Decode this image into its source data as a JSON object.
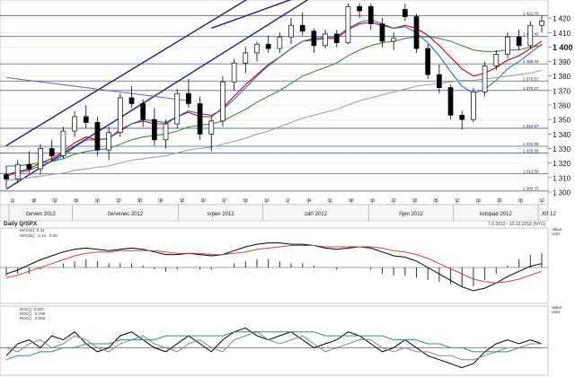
{
  "header": {
    "indicator_title": "Daily Q/SPX",
    "date_range": "7.6.2012 - 10.12.2012 (NYG)",
    "osc_value_label": "Value",
    "osc_unit_label": "USD"
  },
  "price_axis": {
    "ticks": [
      "1 300",
      "1 310",
      "1 320",
      "1 330",
      "1 340",
      "1 350",
      "1 360",
      "1 370",
      "1 380",
      "1 390",
      "1 400",
      "1 410",
      "1 420"
    ],
    "highlight_label": "1 400",
    "level_labels": [
      "1 421.76",
      "1 407.42",
      "1 388.44",
      "1 376.57",
      "1 370.07",
      "1 343.97",
      "1 331.55",
      "1 326.85",
      "1 312.56",
      "1 300.73"
    ]
  },
  "date_axis": {
    "days": [
      "11",
      "18",
      "02",
      "09",
      "16",
      "23",
      "30",
      "06",
      "13",
      "20",
      "27",
      "03",
      "10",
      "17",
      "24",
      "01",
      "08",
      "15",
      "22",
      "29",
      "05",
      "12",
      "19",
      "26",
      "03",
      "10"
    ],
    "months": [
      "červen 2012",
      "červenec 2012",
      "srpen 2012",
      "září 2012",
      "říjen 2012",
      "listopad 2012",
      "XII 12"
    ]
  },
  "macd_legend": [
    "MACD(): 0.34",
    "MACD(): -2.14, -0.08"
  ],
  "roc_legend": [
    "ROC(): 0.603",
    "ROC(): -0.798",
    "ROC(): -0.062"
  ],
  "colors": {
    "candle_up": "#ffffff",
    "candle_down": "#000000",
    "ma_red": "#cc0000",
    "ma_blue": "#1f6fc1",
    "ma_green": "#3a8f3a",
    "ma_gray": "#a0a0a0",
    "channel": "#1a1a8c",
    "level": "#4a5a8a"
  },
  "chart_data": [
    {
      "type": "candlestick",
      "title": "",
      "ylim": [
        1295,
        1430
      ],
      "ohlc": [
        {
          "o": 1312,
          "h": 1318,
          "l": 1303,
          "c": 1309
        },
        {
          "o": 1309,
          "h": 1322,
          "l": 1306,
          "c": 1319
        },
        {
          "o": 1319,
          "h": 1328,
          "l": 1313,
          "c": 1316
        },
        {
          "o": 1316,
          "h": 1333,
          "l": 1312,
          "c": 1330
        },
        {
          "o": 1330,
          "h": 1336,
          "l": 1322,
          "c": 1325
        },
        {
          "o": 1325,
          "h": 1345,
          "l": 1323,
          "c": 1342
        },
        {
          "o": 1342,
          "h": 1356,
          "l": 1338,
          "c": 1352
        },
        {
          "o": 1352,
          "h": 1360,
          "l": 1344,
          "c": 1348
        },
        {
          "o": 1348,
          "h": 1352,
          "l": 1325,
          "c": 1329
        },
        {
          "o": 1329,
          "h": 1345,
          "l": 1322,
          "c": 1341
        },
        {
          "o": 1341,
          "h": 1368,
          "l": 1338,
          "c": 1365
        },
        {
          "o": 1365,
          "h": 1373,
          "l": 1358,
          "c": 1361
        },
        {
          "o": 1361,
          "h": 1364,
          "l": 1345,
          "c": 1350
        },
        {
          "o": 1350,
          "h": 1358,
          "l": 1332,
          "c": 1336
        },
        {
          "o": 1336,
          "h": 1350,
          "l": 1330,
          "c": 1347
        },
        {
          "o": 1347,
          "h": 1371,
          "l": 1344,
          "c": 1368
        },
        {
          "o": 1368,
          "h": 1378,
          "l": 1358,
          "c": 1361
        },
        {
          "o": 1361,
          "h": 1366,
          "l": 1336,
          "c": 1340
        },
        {
          "o": 1340,
          "h": 1352,
          "l": 1328,
          "c": 1349
        },
        {
          "o": 1349,
          "h": 1380,
          "l": 1345,
          "c": 1376
        },
        {
          "o": 1376,
          "h": 1392,
          "l": 1370,
          "c": 1389
        },
        {
          "o": 1389,
          "h": 1400,
          "l": 1382,
          "c": 1396
        },
        {
          "o": 1396,
          "h": 1404,
          "l": 1390,
          "c": 1402
        },
        {
          "o": 1402,
          "h": 1408,
          "l": 1396,
          "c": 1399
        },
        {
          "o": 1399,
          "h": 1410,
          "l": 1396,
          "c": 1407
        },
        {
          "o": 1407,
          "h": 1420,
          "l": 1402,
          "c": 1415
        },
        {
          "o": 1415,
          "h": 1424,
          "l": 1408,
          "c": 1411
        },
        {
          "o": 1411,
          "h": 1413,
          "l": 1396,
          "c": 1401
        },
        {
          "o": 1401,
          "h": 1412,
          "l": 1399,
          "c": 1409
        },
        {
          "o": 1409,
          "h": 1412,
          "l": 1400,
          "c": 1403
        },
        {
          "o": 1403,
          "h": 1430,
          "l": 1402,
          "c": 1428
        },
        {
          "o": 1428,
          "h": 1430,
          "l": 1420,
          "c": 1425
        },
        {
          "o": 1428,
          "h": 1430,
          "l": 1412,
          "c": 1416
        },
        {
          "o": 1416,
          "h": 1420,
          "l": 1400,
          "c": 1404
        },
        {
          "o": 1404,
          "h": 1410,
          "l": 1398,
          "c": 1406
        },
        {
          "o": 1426,
          "h": 1430,
          "l": 1418,
          "c": 1421
        },
        {
          "o": 1421,
          "h": 1423,
          "l": 1396,
          "c": 1399
        },
        {
          "o": 1399,
          "h": 1402,
          "l": 1378,
          "c": 1381
        },
        {
          "o": 1381,
          "h": 1388,
          "l": 1368,
          "c": 1372
        },
        {
          "o": 1372,
          "h": 1374,
          "l": 1350,
          "c": 1353
        },
        {
          "o": 1353,
          "h": 1356,
          "l": 1343,
          "c": 1350
        },
        {
          "o": 1350,
          "h": 1372,
          "l": 1348,
          "c": 1369
        },
        {
          "o": 1369,
          "h": 1390,
          "l": 1366,
          "c": 1387
        },
        {
          "o": 1387,
          "h": 1398,
          "l": 1384,
          "c": 1395
        },
        {
          "o": 1395,
          "h": 1410,
          "l": 1392,
          "c": 1407
        },
        {
          "o": 1407,
          "h": 1412,
          "l": 1398,
          "c": 1401
        },
        {
          "o": 1401,
          "h": 1418,
          "l": 1399,
          "c": 1415
        },
        {
          "o": 1415,
          "h": 1422,
          "l": 1410,
          "c": 1418
        }
      ],
      "overlays": [
        {
          "name": "",
          "color": "ma_red",
          "values": [
            1312,
            1314,
            1316,
            1320,
            1323,
            1328,
            1334,
            1338,
            1336,
            1337,
            1343,
            1347,
            1349,
            1347,
            1347,
            1352,
            1355,
            1352,
            1352,
            1358,
            1366,
            1374,
            1381,
            1388,
            1393,
            1399,
            1404,
            1405,
            1406,
            1406,
            1412,
            1416,
            1417,
            1415,
            1413,
            1415,
            1413,
            1408,
            1401,
            1393,
            1385,
            1380,
            1382,
            1386,
            1391,
            1394,
            1399,
            1404
          ]
        },
        {
          "name": "",
          "color": "ma_blue",
          "values": [
            1311,
            1313,
            1315,
            1318,
            1321,
            1325,
            1331,
            1336,
            1336,
            1337,
            1342,
            1347,
            1350,
            1349,
            1348,
            1352,
            1356,
            1354,
            1353,
            1357,
            1364,
            1372,
            1380,
            1387,
            1393,
            1399,
            1404,
            1406,
            1407,
            1407,
            1413,
            1417,
            1419,
            1416,
            1413,
            1414,
            1410,
            1403,
            1394,
            1383,
            1373,
            1368,
            1371,
            1377,
            1385,
            1390,
            1396,
            1402
          ]
        },
        {
          "name": "",
          "color": "ma_green",
          "values": [
            1318,
            1318,
            1319,
            1320,
            1321,
            1323,
            1326,
            1328,
            1329,
            1330,
            1333,
            1336,
            1338,
            1339,
            1340,
            1342,
            1345,
            1346,
            1347,
            1349,
            1353,
            1357,
            1362,
            1366,
            1370,
            1375,
            1380,
            1383,
            1386,
            1389,
            1394,
            1398,
            1401,
            1403,
            1404,
            1406,
            1407,
            1407,
            1406,
            1404,
            1401,
            1398,
            1397,
            1397,
            1398,
            1398,
            1400,
            1401
          ]
        },
        {
          "name": "",
          "color": "ma_gray",
          "values": [
            1308,
            1309,
            1310,
            1311,
            1312,
            1313,
            1315,
            1316,
            1317,
            1318,
            1320,
            1322,
            1323,
            1324,
            1325,
            1327,
            1329,
            1330,
            1331,
            1333,
            1335,
            1337,
            1340,
            1342,
            1345,
            1348,
            1351,
            1353,
            1355,
            1357,
            1360,
            1363,
            1365,
            1367,
            1369,
            1371,
            1373,
            1374,
            1375,
            1376,
            1377,
            1377,
            1378,
            1379,
            1380,
            1381,
            1382,
            1384
          ]
        }
      ]
    },
    {
      "type": "line",
      "title": "",
      "ylim": [
        -25,
        25
      ],
      "series": [
        {
          "name": "",
          "color": "#000000",
          "values": [
            -5,
            -2,
            2,
            6,
            9,
            12,
            14,
            15,
            14,
            13,
            14,
            15,
            14,
            12,
            10,
            10,
            11,
            10,
            9,
            10,
            13,
            16,
            18,
            19,
            19,
            18,
            18,
            17,
            15,
            14,
            15,
            16,
            15,
            12,
            9,
            8,
            5,
            0,
            -5,
            -10,
            -15,
            -18,
            -16,
            -12,
            -7,
            -3,
            1,
            3
          ]
        },
        {
          "name": "",
          "color": "#cc4444",
          "values": [
            -8,
            -6,
            -3,
            0,
            3,
            6,
            9,
            11,
            12,
            12,
            13,
            13,
            13,
            13,
            12,
            11,
            11,
            11,
            10,
            10,
            11,
            12,
            14,
            15,
            16,
            17,
            17,
            17,
            16,
            16,
            16,
            16,
            16,
            15,
            13,
            12,
            10,
            7,
            3,
            -1,
            -5,
            -9,
            -11,
            -12,
            -11,
            -9,
            -6,
            -3
          ]
        }
      ],
      "bars": [
        -4,
        -3,
        -3,
        -1,
        0,
        2,
        3,
        4,
        3,
        2,
        2,
        2,
        1,
        -1,
        -2,
        -1,
        0,
        -1,
        -1,
        0,
        2,
        3,
        4,
        4,
        3,
        2,
        2,
        1,
        0,
        -1,
        0,
        0,
        -1,
        -3,
        -4,
        -4,
        -5,
        -6,
        -7,
        -8,
        -9,
        -9,
        -6,
        -3,
        1,
        4,
        6,
        7
      ]
    },
    {
      "type": "line",
      "title": "",
      "ylim": [
        -6,
        8
      ],
      "series": [
        {
          "name": "",
          "color": "#000000",
          "values": [
            -2,
            1,
            2,
            0,
            3,
            2,
            4,
            1,
            -1,
            0,
            3,
            4,
            2,
            0,
            -1,
            1,
            3,
            1,
            -1,
            2,
            4,
            5,
            3,
            2,
            3,
            4,
            2,
            0,
            1,
            2,
            4,
            3,
            1,
            -1,
            0,
            2,
            0,
            -2,
            -3,
            -4,
            -5,
            -4,
            -1,
            1,
            2,
            1,
            2,
            1
          ]
        },
        {
          "name": "",
          "color": "#888888",
          "values": [
            0,
            -1,
            1,
            2,
            0,
            1,
            3,
            2,
            0,
            -1,
            1,
            2,
            3,
            1,
            0,
            -1,
            1,
            2,
            0,
            -1,
            2,
            3,
            4,
            2,
            1,
            2,
            3,
            1,
            -1,
            0,
            1,
            2,
            2,
            0,
            -1,
            0,
            -1,
            -1,
            -2,
            -2,
            -3,
            -3,
            -2,
            -1,
            0,
            0,
            1,
            1
          ]
        },
        {
          "name": "",
          "color": "#2f8f7a",
          "values": [
            -3,
            -2,
            -2,
            -1,
            -1,
            0,
            0,
            1,
            1,
            1,
            2,
            2,
            2,
            2,
            3,
            3,
            3,
            3,
            3,
            3,
            4,
            4,
            4,
            4,
            4,
            4,
            4,
            4,
            3,
            3,
            3,
            3,
            3,
            3,
            2,
            2,
            2,
            1,
            1,
            0,
            0,
            -1,
            -1,
            -1,
            -1,
            0,
            0,
            0
          ]
        }
      ]
    }
  ]
}
